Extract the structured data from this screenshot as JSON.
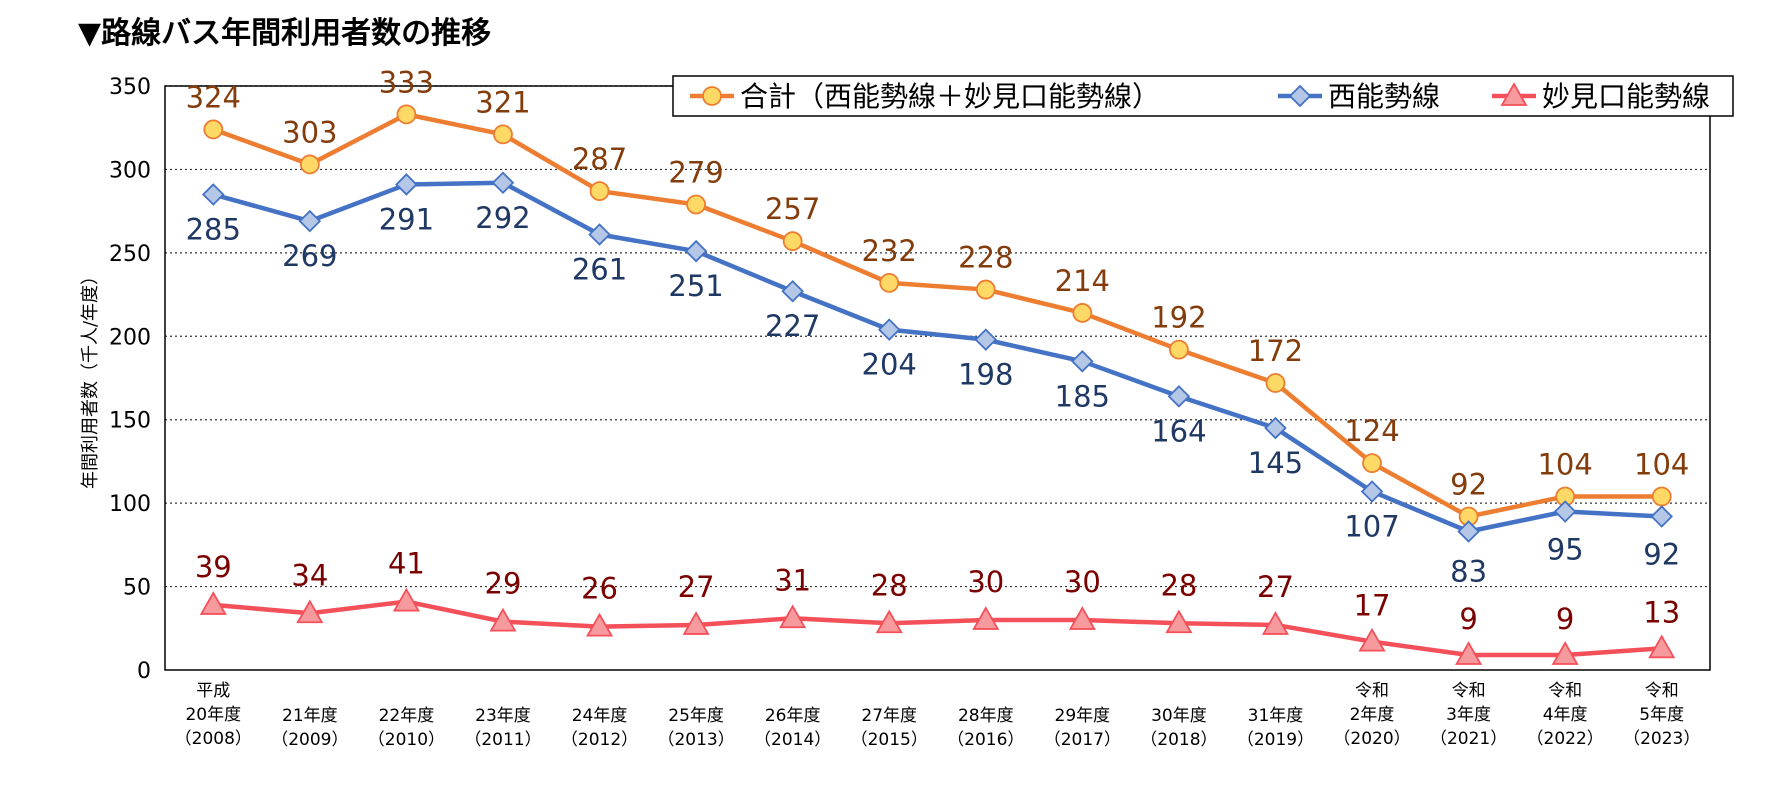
{
  "title": "▼路線バス年間利用者数の推移",
  "chart_data": {
    "type": "line",
    "title": "▼路線バス年間利用者数の推移",
    "ylabel": "年間利用者数（千人/年度）",
    "xlabel": "",
    "ylim": [
      0,
      350
    ],
    "yticks": [
      0,
      50,
      100,
      150,
      200,
      250,
      300,
      350
    ],
    "grid": true,
    "legend_position": "top-right",
    "categories": [
      [
        "平成",
        "20年度",
        "（2008）"
      ],
      [
        "21年度",
        "（2009）"
      ],
      [
        "22年度",
        "（2010）"
      ],
      [
        "23年度",
        "（2011）"
      ],
      [
        "24年度",
        "（2012）"
      ],
      [
        "25年度",
        "（2013）"
      ],
      [
        "26年度",
        "（2014）"
      ],
      [
        "27年度",
        "（2015）"
      ],
      [
        "28年度",
        "（2016）"
      ],
      [
        "29年度",
        "（2017）"
      ],
      [
        "30年度",
        "（2018）"
      ],
      [
        "31年度",
        "（2019）"
      ],
      [
        "令和",
        "2年度",
        "（2020）"
      ],
      [
        "令和",
        "3年度",
        "（2021）"
      ],
      [
        "令和",
        "4年度",
        "（2022）"
      ],
      [
        "令和",
        "5年度",
        "（2023）"
      ]
    ],
    "series": [
      {
        "name": "合計（西能勢線＋妙見口能勢線）",
        "color": "#ED7D31",
        "marker_fill": "#FFD966",
        "label_color": "#833C0B",
        "marker": "circle",
        "values": [
          324,
          303,
          333,
          321,
          287,
          279,
          257,
          232,
          228,
          214,
          192,
          172,
          124,
          92,
          104,
          104
        ]
      },
      {
        "name": "西能勢線",
        "color": "#4472C4",
        "marker_fill": "#B4C7E7",
        "label_color": "#1F3864",
        "marker": "diamond",
        "values": [
          285,
          269,
          291,
          292,
          261,
          251,
          227,
          204,
          198,
          185,
          164,
          145,
          107,
          83,
          95,
          92
        ]
      },
      {
        "name": "妙見口能勢線",
        "color": "#F4505A",
        "marker_fill": "#F79A9E",
        "label_color": "#7B0000",
        "marker": "triangle",
        "values": [
          39,
          34,
          41,
          29,
          26,
          27,
          31,
          28,
          30,
          30,
          28,
          27,
          17,
          9,
          9,
          13
        ]
      }
    ]
  }
}
